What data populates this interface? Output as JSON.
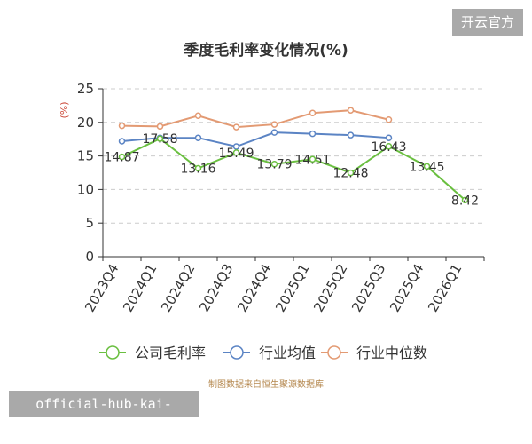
{
  "chart_data": {
    "type": "line",
    "title": "季度毛利率变化情况(%)",
    "y_unit": "(%)",
    "source": "制图数据来自恒生聚源数据库",
    "categories": [
      "2023Q4",
      "2024Q1",
      "2024Q2",
      "2024Q3",
      "2024Q4",
      "2025Q1",
      "2025Q2",
      "2025Q3",
      "2025Q4",
      "2026Q1"
    ],
    "ylim": [
      0,
      25
    ],
    "yticks": [
      0,
      5,
      10,
      15,
      20,
      25
    ],
    "grid": true,
    "legend_position": "bottom",
    "series": [
      {
        "name": "公司毛利率",
        "color": "#6abf40",
        "values": [
          14.87,
          17.58,
          13.16,
          15.49,
          13.79,
          14.51,
          12.48,
          16.43,
          13.45,
          8.42
        ],
        "labels": true
      },
      {
        "name": "行业均值",
        "color": "#5b84c4",
        "values": [
          17.2,
          17.7,
          17.7,
          16.4,
          18.5,
          18.3,
          18.1,
          17.7,
          null,
          null
        ],
        "labels": false
      },
      {
        "name": "行业中位数",
        "color": "#e39a73",
        "values": [
          19.5,
          19.4,
          21.0,
          19.3,
          19.7,
          21.4,
          21.8,
          20.4,
          null,
          null
        ],
        "labels": false
      }
    ]
  },
  "badges": {
    "top_right": "开云官方",
    "bottom_left": "official-hub-kai-yun.com"
  }
}
